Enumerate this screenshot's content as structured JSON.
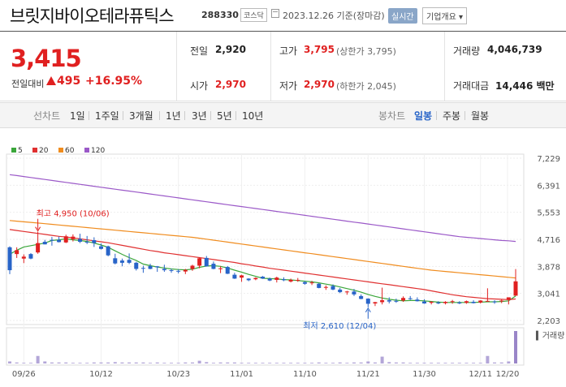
{
  "header": {
    "title": "브릿지바이오테라퓨틱스",
    "code": "288330",
    "market": "코스닥",
    "date": "2023.12.26 기준(장마감)",
    "realtime": "실시간",
    "info": "기업개요"
  },
  "quote": {
    "price": "3,415",
    "change_label": "전일대비",
    "change": "495",
    "change_pct": "+16.95%",
    "prev_close_label": "전일",
    "prev_close": "2,920",
    "open_label": "시가",
    "open": "2,970",
    "high_label": "고가",
    "high": "3,795",
    "upper_limit": "(상한가 3,795)",
    "low_label": "저가",
    "low": "2,970",
    "lower_limit": "(하한가 2,045)",
    "volume_label": "거래량",
    "volume": "4,046,739",
    "amount_label": "거래대금",
    "amount": "14,446 백만"
  },
  "period_tabs": {
    "label": "선차트",
    "items": [
      "1일",
      "1주일",
      "3개월",
      "1년",
      "3년",
      "5년",
      "10년"
    ]
  },
  "candle_tabs": {
    "label": "봉차트",
    "items": [
      "일봉",
      "주봉",
      "월봉"
    ],
    "active": "일봉"
  },
  "colors": {
    "up": "#e02020",
    "down": "#2864c8",
    "accent": "#2864c8"
  },
  "chart_data": {
    "type": "candlestick",
    "legend": [
      {
        "name": "5",
        "color": "#3aa63a"
      },
      {
        "name": "20",
        "color": "#e03030"
      },
      {
        "name": "60",
        "color": "#f08c1e"
      },
      {
        "name": "120",
        "color": "#9b59c8"
      }
    ],
    "yticks": [
      "7,229",
      "6,391",
      "5,553",
      "4,716",
      "3,878",
      "3,041",
      "2,203"
    ],
    "ylim": [
      2203,
      7229
    ],
    "xticks": [
      "09/26",
      "10/12",
      "10/23",
      "11/01",
      "11/10",
      "11/21",
      "11/30",
      "12/11",
      "12/20"
    ],
    "volume_label": "거래량",
    "annotations": [
      {
        "label": "최고 4,950 (10/06)",
        "value": 4950,
        "color": "#e02020"
      },
      {
        "label": "최저 2,610 (12/04)",
        "value": 2610,
        "color": "#2864c8"
      }
    ],
    "candles": [
      [
        4470,
        4500,
        3640,
        3760
      ],
      [
        4260,
        4470,
        4140,
        4380
      ],
      [
        4120,
        4250,
        3980,
        4180
      ],
      [
        4260,
        4290,
        4100,
        4120
      ],
      [
        4310,
        4950,
        4270,
        4600
      ],
      [
        4640,
        4700,
        4560,
        4560
      ],
      [
        4700,
        4790,
        4520,
        4690
      ],
      [
        4700,
        4800,
        4620,
        4630
      ],
      [
        4620,
        4860,
        4600,
        4810
      ],
      [
        4720,
        4870,
        4650,
        4800
      ],
      [
        4730,
        4890,
        4600,
        4640
      ],
      [
        4640,
        4820,
        4570,
        4630
      ],
      [
        4690,
        4780,
        4480,
        4600
      ],
      [
        4500,
        4590,
        4400,
        4420
      ],
      [
        4500,
        4520,
        4190,
        4220
      ],
      [
        4130,
        4270,
        3940,
        3970
      ],
      [
        4060,
        4120,
        3880,
        3990
      ],
      [
        4080,
        4280,
        3950,
        3990
      ],
      [
        3990,
        4020,
        3750,
        3800
      ],
      [
        3830,
        3900,
        3680,
        3820
      ],
      [
        3890,
        3960,
        3790,
        3800
      ],
      [
        3880,
        3890,
        3710,
        3850
      ],
      [
        3800,
        3930,
        3710,
        3760
      ],
      [
        3760,
        3810,
        3680,
        3740
      ],
      [
        3740,
        3790,
        3660,
        3720
      ],
      [
        3720,
        3800,
        3640,
        3770
      ],
      [
        3800,
        3930,
        3740,
        3900
      ],
      [
        3900,
        4160,
        3820,
        4130
      ],
      [
        4140,
        4200,
        3870,
        3880
      ],
      [
        3960,
        4030,
        3790,
        3800
      ],
      [
        3820,
        3880,
        3670,
        3820
      ],
      [
        3860,
        3890,
        3640,
        3650
      ],
      [
        3620,
        3680,
        3490,
        3500
      ],
      [
        3530,
        3620,
        3400,
        3600
      ],
      [
        3500,
        3510,
        3420,
        3450
      ],
      [
        3480,
        3540,
        3450,
        3520
      ],
      [
        3560,
        3580,
        3490,
        3500
      ],
      [
        3500,
        3530,
        3420,
        3440
      ],
      [
        3460,
        3560,
        3380,
        3530
      ],
      [
        3480,
        3540,
        3420,
        3450
      ],
      [
        3410,
        3500,
        3380,
        3460
      ],
      [
        3440,
        3520,
        3400,
        3460
      ],
      [
        3390,
        3420,
        3310,
        3340
      ],
      [
        3370,
        3430,
        3300,
        3380
      ],
      [
        3340,
        3360,
        3200,
        3210
      ],
      [
        3220,
        3290,
        3150,
        3240
      ],
      [
        3270,
        3320,
        3140,
        3160
      ],
      [
        3160,
        3210,
        3050,
        3080
      ],
      [
        3080,
        3120,
        3000,
        3100
      ],
      [
        3100,
        3180,
        2960,
        3010
      ],
      [
        2960,
        3010,
        2860,
        2870
      ],
      [
        2880,
        2890,
        2610,
        2720
      ],
      [
        2730,
        2780,
        2650,
        2770
      ],
      [
        2770,
        3220,
        2700,
        2830
      ],
      [
        2830,
        2920,
        2730,
        2790
      ],
      [
        2810,
        2880,
        2750,
        2800
      ],
      [
        2820,
        2950,
        2780,
        2900
      ],
      [
        2890,
        2960,
        2840,
        2870
      ],
      [
        2850,
        2920,
        2790,
        2800
      ],
      [
        2790,
        2860,
        2720,
        2730
      ],
      [
        2750,
        2800,
        2700,
        2780
      ],
      [
        2760,
        2800,
        2710,
        2730
      ],
      [
        2740,
        2800,
        2700,
        2780
      ],
      [
        2790,
        2840,
        2720,
        2800
      ],
      [
        2760,
        2800,
        2710,
        2730
      ],
      [
        2750,
        2820,
        2720,
        2800
      ],
      [
        2780,
        2830,
        2730,
        2740
      ],
      [
        2760,
        2830,
        2730,
        2820
      ],
      [
        2800,
        3200,
        2790,
        2810
      ],
      [
        2790,
        2830,
        2720,
        2780
      ],
      [
        2800,
        2850,
        2740,
        2820
      ],
      [
        2840,
        2900,
        2700,
        2920
      ],
      [
        2970,
        3795,
        2970,
        3415
      ]
    ],
    "volumes": [
      6,
      3,
      2,
      2,
      22,
      6,
      3,
      3,
      3,
      2,
      2,
      2,
      3,
      3,
      3,
      4,
      3,
      3,
      3,
      3,
      2,
      3,
      2,
      2,
      2,
      3,
      3,
      8,
      4,
      2,
      3,
      3,
      3,
      2,
      2,
      2,
      2,
      2,
      2,
      2,
      2,
      2,
      2,
      2,
      3,
      2,
      2,
      3,
      2,
      3,
      3,
      6,
      3,
      20,
      4,
      3,
      3,
      2,
      2,
      2,
      2,
      2,
      2,
      2,
      2,
      2,
      2,
      2,
      22,
      3,
      3,
      6,
      95
    ],
    "ma": {
      "5": [
        4250,
        4380,
        4480,
        4520,
        4560,
        4600,
        4680,
        4700,
        4730,
        4700,
        4680,
        4650,
        4600,
        4540,
        4470,
        4360,
        4250,
        4150,
        4060,
        3950,
        3900,
        3860,
        3830,
        3800,
        3780,
        3770,
        3790,
        3850,
        3890,
        3900,
        3880,
        3830,
        3760,
        3700,
        3630,
        3570,
        3510,
        3500,
        3490,
        3470,
        3460,
        3440,
        3420,
        3400,
        3370,
        3330,
        3290,
        3240,
        3190,
        3140,
        3080,
        3010,
        2950,
        2900,
        2860,
        2830,
        2810,
        2820,
        2820,
        2810,
        2790,
        2770,
        2760,
        2760,
        2760,
        2760,
        2760,
        2770,
        2780,
        2780,
        2790,
        2810,
        2960
      ],
      "20": [
        5020,
        4990,
        4960,
        4930,
        4900,
        4870,
        4840,
        4810,
        4790,
        4760,
        4730,
        4700,
        4670,
        4640,
        4610,
        4570,
        4530,
        4490,
        4450,
        4410,
        4370,
        4340,
        4300,
        4270,
        4240,
        4210,
        4180,
        4150,
        4120,
        4090,
        4060,
        4030,
        4000,
        3960,
        3930,
        3890,
        3860,
        3820,
        3790,
        3760,
        3730,
        3700,
        3670,
        3640,
        3610,
        3580,
        3550,
        3520,
        3490,
        3460,
        3430,
        3400,
        3370,
        3340,
        3310,
        3280,
        3250,
        3220,
        3190,
        3160,
        3120,
        3080,
        3040,
        3000,
        2970,
        2940,
        2920,
        2900,
        2880,
        2870,
        2860,
        2850,
        2870
      ],
      "60": [
        5300,
        5280,
        5260,
        5240,
        5220,
        5200,
        5180,
        5160,
        5140,
        5120,
        5100,
        5080,
        5060,
        5040,
        5020,
        5000,
        4980,
        4960,
        4940,
        4920,
        4900,
        4880,
        4860,
        4840,
        4820,
        4800,
        4780,
        4750,
        4720,
        4690,
        4660,
        4630,
        4600,
        4570,
        4540,
        4510,
        4480,
        4450,
        4420,
        4390,
        4360,
        4330,
        4300,
        4270,
        4240,
        4210,
        4180,
        4150,
        4120,
        4090,
        4060,
        4030,
        4000,
        3970,
        3940,
        3910,
        3880,
        3850,
        3820,
        3790,
        3760,
        3740,
        3720,
        3700,
        3680,
        3660,
        3640,
        3620,
        3600,
        3580,
        3560,
        3540,
        3520
      ],
      "120": [
        6720,
        6690,
        6660,
        6630,
        6600,
        6570,
        6540,
        6510,
        6480,
        6450,
        6420,
        6390,
        6360,
        6330,
        6300,
        6270,
        6240,
        6210,
        6180,
        6150,
        6120,
        6090,
        6060,
        6030,
        6000,
        5970,
        5940,
        5910,
        5880,
        5850,
        5820,
        5790,
        5760,
        5730,
        5700,
        5670,
        5640,
        5610,
        5580,
        5550,
        5520,
        5490,
        5460,
        5430,
        5400,
        5370,
        5340,
        5310,
        5280,
        5250,
        5220,
        5190,
        5160,
        5130,
        5100,
        5070,
        5040,
        5010,
        4980,
        4950,
        4920,
        4890,
        4860,
        4830,
        4800,
        4780,
        4760,
        4740,
        4720,
        4700,
        4680,
        4670,
        4650
      ]
    }
  }
}
